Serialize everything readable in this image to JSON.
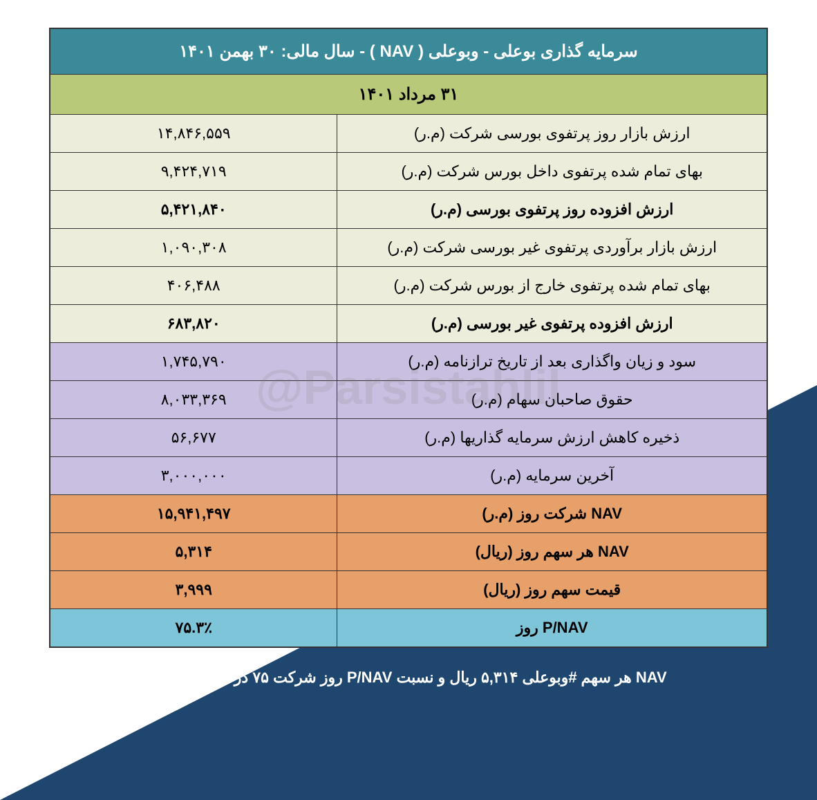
{
  "header": {
    "title": "سرمایه گذاری بوعلی - وبوعلی ( NAV ) - سال مالی: ۳۰ بهمن ۱۴۰۱",
    "bg": "#3b8a99",
    "color": "#ffffff"
  },
  "date_row": {
    "text": "۳۱ مرداد ۱۴۰۱",
    "bg": "#b8c97a"
  },
  "sections": [
    {
      "bg": "#eceedb",
      "rows": [
        {
          "label": "ارزش بازار روز پرتفوی بورسی شرکت (م.ر)",
          "value": "۱۴,۸۴۶,۵۵۹",
          "bold": false
        },
        {
          "label": "بهای تمام شده پرتفوی داخل بورس شرکت (م.ر)",
          "value": "۹,۴۲۴,۷۱۹",
          "bold": false
        },
        {
          "label": "ارزش افزوده روز پرتفوی بورسی (م.ر)",
          "value": "۵,۴۲۱,۸۴۰",
          "bold": true
        },
        {
          "label": "ارزش بازار برآوردی پرتفوی غیر بورسی شرکت (م.ر)",
          "value": "۱,۰۹۰,۳۰۸",
          "bold": false
        },
        {
          "label": "بهای تمام شده پرتفوی خارج از بورس شرکت (م.ر)",
          "value": "۴۰۶,۴۸۸",
          "bold": false
        },
        {
          "label": "ارزش افزوده پرتفوی غیر بورسی (م.ر)",
          "value": "۶۸۳,۸۲۰",
          "bold": true
        }
      ]
    },
    {
      "bg": "#c9bfe0",
      "rows": [
        {
          "label": "سود و زیان واگذاری بعد از تاریخ ترازنامه (م.ر)",
          "value": "۱,۷۴۵,۷۹۰",
          "bold": false
        },
        {
          "label": "حقوق صاحبان سهام (م.ر)",
          "value": "۸,۰۳۳,۳۶۹",
          "bold": false
        },
        {
          "label": "ذخیره کاهش ارزش سرمایه گذاریها (م.ر)",
          "value": "۵۶,۶۷۷",
          "bold": false
        },
        {
          "label": "آخرین سرمایه (م.ر)",
          "value": "۳,۰۰۰,۰۰۰",
          "bold": false
        }
      ]
    },
    {
      "bg": "#e8a06a",
      "rows": [
        {
          "label": "NAV  شرکت روز (م.ر)",
          "value": "۱۵,۹۴۱,۴۹۷",
          "bold": true
        },
        {
          "label": "NAV  هر سهم روز (ریال)",
          "value": "۵,۳۱۴",
          "bold": true
        },
        {
          "label": "قیمت سهم روز (ریال)",
          "value": "۳,۹۹۹",
          "bold": true
        }
      ]
    },
    {
      "bg": "#7fc5d9",
      "rows": [
        {
          "label": "P/NAV روز",
          "value": "۷۵.۳٪",
          "bold": true
        }
      ]
    }
  ],
  "footer": "NAV هر سهم #وبوعلی ۵,۳۱۴ ریال و نسبت P/NAV روز شرکت ۷۵ درصد می باشد.",
  "watermark": "@Parsistahlil",
  "triangle_color": "#1e466e"
}
